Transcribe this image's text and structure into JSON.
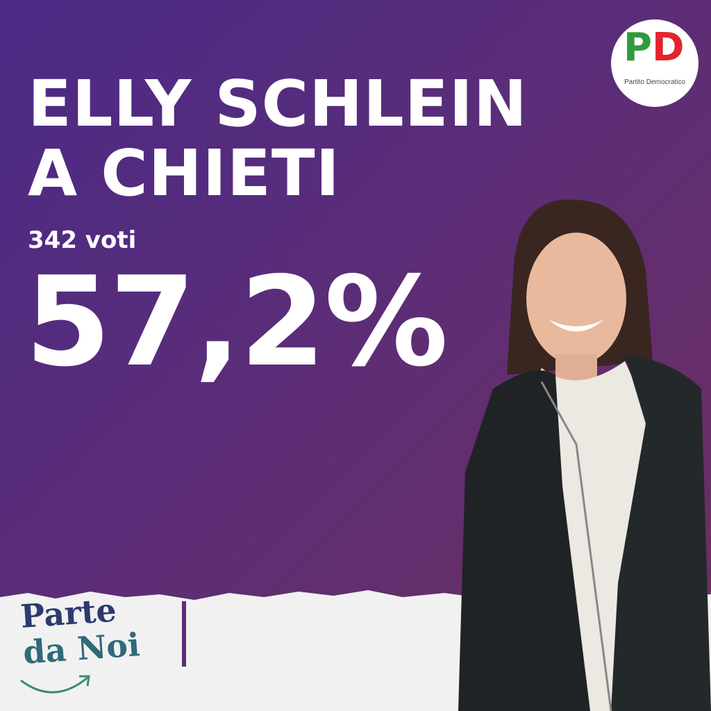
{
  "headline": {
    "line1": "ELLY SCHLEIN",
    "line2": "A CHIETI"
  },
  "result": {
    "votes": "342 voti",
    "percent": "57,2%"
  },
  "logo": {
    "letters_p": "P",
    "letters_d": "D",
    "text": "Partito Democratico"
  },
  "slogan": {
    "line1": "Parte",
    "line2": "da Noi"
  },
  "colors": {
    "background_start": "#4a2a86",
    "background_end": "#6e2f5e",
    "text": "#ffffff",
    "pd_green": "#2e9a3e",
    "pd_red": "#e3242b"
  }
}
